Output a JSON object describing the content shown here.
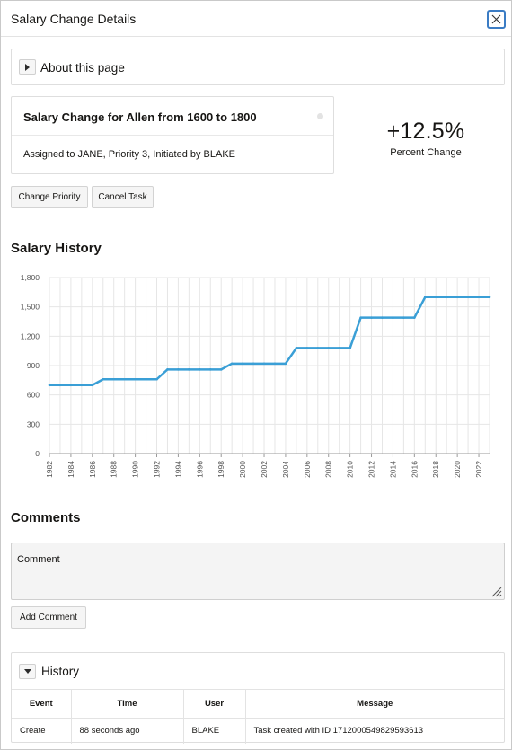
{
  "dialog": {
    "title": "Salary Change Details"
  },
  "about": {
    "label": "About this page"
  },
  "task_card": {
    "title": "Salary Change for Allen from 1600 to 1800",
    "meta": "Assigned to JANE, Priority 3, Initiated by BLAKE"
  },
  "metric": {
    "value": "+12.5%",
    "caption": "Percent Change"
  },
  "actions": {
    "change_priority": "Change Priority",
    "cancel_task": "Cancel Task"
  },
  "salary_history": {
    "title": "Salary History"
  },
  "chart_data": {
    "type": "line",
    "title": "",
    "xlabel": "",
    "ylabel": "",
    "x": [
      1982,
      1983,
      1984,
      1985,
      1986,
      1987,
      1988,
      1989,
      1990,
      1991,
      1992,
      1993,
      1994,
      1995,
      1996,
      1997,
      1998,
      1999,
      2000,
      2001,
      2002,
      2003,
      2004,
      2005,
      2006,
      2007,
      2008,
      2009,
      2010,
      2011,
      2012,
      2013,
      2014,
      2015,
      2016,
      2017,
      2018,
      2019,
      2020,
      2021,
      2022,
      2023
    ],
    "series": [
      {
        "values": [
          700,
          700,
          700,
          700,
          700,
          760,
          760,
          760,
          760,
          760,
          760,
          860,
          860,
          860,
          860,
          860,
          860,
          920,
          920,
          920,
          920,
          920,
          920,
          1080,
          1080,
          1080,
          1080,
          1080,
          1080,
          1390,
          1390,
          1390,
          1390,
          1390,
          1390,
          1600,
          1600,
          1600,
          1600,
          1600,
          1600,
          1600
        ]
      }
    ],
    "ylim": [
      0,
      1800
    ],
    "yticks": [
      "0",
      "300",
      "600",
      "900",
      "1,200",
      "1,500",
      "1,800"
    ],
    "xticks": [
      "1982",
      "1984",
      "1986",
      "1988",
      "1990",
      "1992",
      "1994",
      "1996",
      "1998",
      "2000",
      "2002",
      "2004",
      "2006",
      "2008",
      "2010",
      "2012",
      "2014",
      "2016",
      "2018",
      "2020",
      "2022"
    ],
    "grid": true,
    "color": "#3a9fd6"
  },
  "comments": {
    "title": "Comments",
    "placeholder": "Comment",
    "add_label": "Add Comment"
  },
  "history": {
    "label": "History",
    "columns": [
      "Event",
      "Time",
      "User",
      "Message"
    ],
    "rows": [
      [
        "Create",
        "88 seconds ago",
        "BLAKE",
        "Task created with ID 1712000549829593613"
      ]
    ]
  },
  "icons": {
    "close": "close-icon",
    "expand": "triangle-right-icon",
    "collapse": "triangle-down-icon",
    "resize": "resize-grip-icon"
  }
}
